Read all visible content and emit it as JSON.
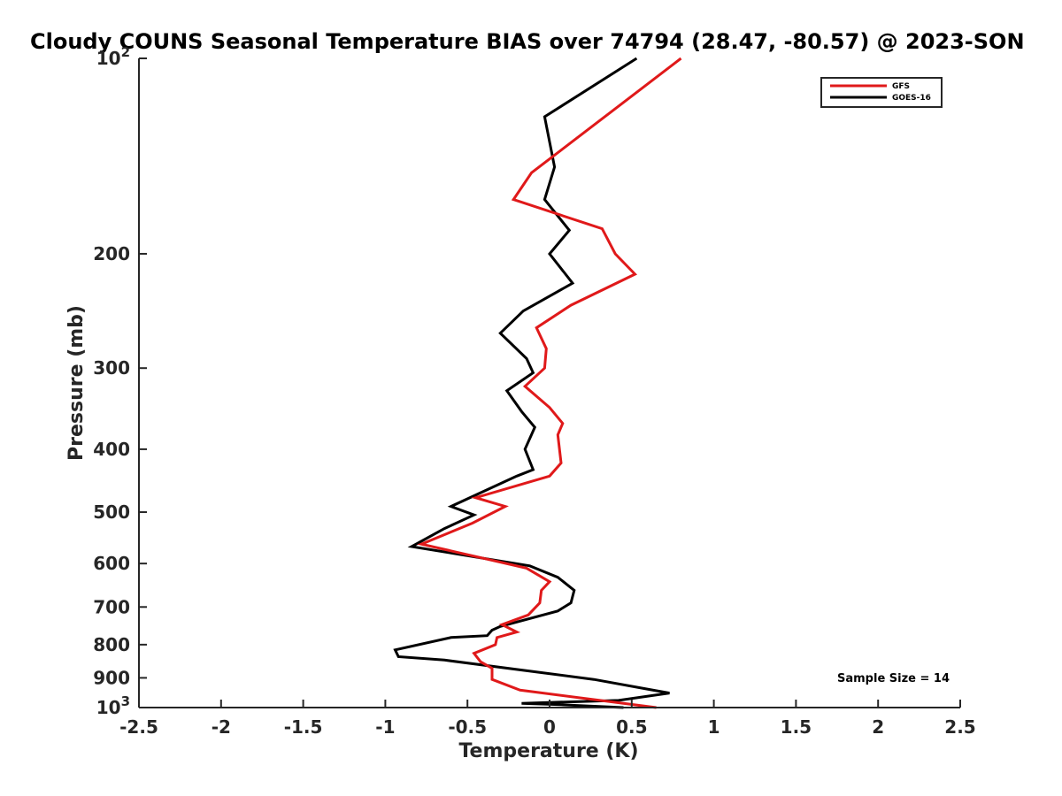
{
  "chart_data": {
    "type": "line",
    "title": "Cloudy COUNS Seasonal Temperature BIAS over 74794 (28.47, -80.57) @ 2023-SON",
    "xlabel": "Temperature (K)",
    "ylabel": "Pressure (mb)",
    "xlim": [
      -2.5,
      2.5
    ],
    "ylim": [
      100,
      1000
    ],
    "y_scale": "log",
    "y_reversed": true,
    "x_ticks": [
      -2.5,
      -2,
      -1.5,
      -1,
      -0.5,
      0,
      0.5,
      1,
      1.5,
      2,
      2.5
    ],
    "x_tick_labels": [
      "-2.5",
      "-2",
      "-1.5",
      "-1",
      "-0.5",
      "0",
      "0.5",
      "1",
      "1.5",
      "2",
      "2.5"
    ],
    "y_ticks": [
      100,
      200,
      300,
      400,
      500,
      600,
      700,
      800,
      900,
      1000
    ],
    "y_tick_labels": [
      {
        "base": "10",
        "exp": "2"
      },
      {
        "base": "200",
        "exp": ""
      },
      {
        "base": "300",
        "exp": ""
      },
      {
        "base": "400",
        "exp": ""
      },
      {
        "base": "500",
        "exp": ""
      },
      {
        "base": "600",
        "exp": ""
      },
      {
        "base": "700",
        "exp": ""
      },
      {
        "base": "800",
        "exp": ""
      },
      {
        "base": "900",
        "exp": ""
      },
      {
        "base": "10",
        "exp": "3"
      }
    ],
    "grid": false,
    "legend_position": "top-right",
    "annotation": "Sample Size = 14",
    "series": [
      {
        "name": "GFS",
        "color": "#e0191a",
        "points": [
          [
            0.8,
            100
          ],
          [
            0.3,
            125
          ],
          [
            -0.11,
            150
          ],
          [
            -0.22,
            165
          ],
          [
            0.32,
            183
          ],
          [
            0.4,
            200
          ],
          [
            0.52,
            215
          ],
          [
            0.13,
            240
          ],
          [
            -0.08,
            260
          ],
          [
            -0.02,
            280
          ],
          [
            -0.03,
            300
          ],
          [
            -0.15,
            320
          ],
          [
            0.0,
            345
          ],
          [
            0.08,
            365
          ],
          [
            0.05,
            380
          ],
          [
            0.07,
            420
          ],
          [
            0.0,
            440
          ],
          [
            -0.45,
            475
          ],
          [
            -0.27,
            490
          ],
          [
            -0.47,
            520
          ],
          [
            -0.78,
            560
          ],
          [
            -0.14,
            610
          ],
          [
            0.0,
            640
          ],
          [
            -0.05,
            660
          ],
          [
            -0.06,
            690
          ],
          [
            -0.13,
            720
          ],
          [
            -0.29,
            745
          ],
          [
            -0.2,
            765
          ],
          [
            -0.32,
            780
          ],
          [
            -0.33,
            800
          ],
          [
            -0.46,
            825
          ],
          [
            -0.42,
            850
          ],
          [
            -0.35,
            870
          ],
          [
            -0.35,
            905
          ],
          [
            -0.18,
            940
          ],
          [
            0.65,
            1000
          ]
        ]
      },
      {
        "name": "GOES-16",
        "color": "#000000",
        "points": [
          [
            0.53,
            100
          ],
          [
            -0.03,
            123
          ],
          [
            0.03,
            147
          ],
          [
            -0.03,
            165
          ],
          [
            0.12,
            184
          ],
          [
            0.0,
            200
          ],
          [
            0.14,
            222
          ],
          [
            -0.16,
            245
          ],
          [
            -0.3,
            265
          ],
          [
            -0.14,
            290
          ],
          [
            -0.1,
            305
          ],
          [
            -0.26,
            325
          ],
          [
            -0.17,
            350
          ],
          [
            -0.09,
            370
          ],
          [
            -0.15,
            400
          ],
          [
            -0.1,
            430
          ],
          [
            -0.2,
            440
          ],
          [
            -0.6,
            490
          ],
          [
            -0.46,
            505
          ],
          [
            -0.64,
            530
          ],
          [
            -0.84,
            565
          ],
          [
            -0.12,
            605
          ],
          [
            0.05,
            630
          ],
          [
            0.15,
            660
          ],
          [
            0.13,
            690
          ],
          [
            0.05,
            710
          ],
          [
            -0.3,
            750
          ],
          [
            -0.35,
            760
          ],
          [
            -0.38,
            775
          ],
          [
            -0.6,
            780
          ],
          [
            -0.94,
            815
          ],
          [
            -0.92,
            835
          ],
          [
            -0.64,
            845
          ],
          [
            0.27,
            905
          ],
          [
            0.58,
            935
          ],
          [
            0.73,
            950
          ],
          [
            0.42,
            975
          ],
          [
            -0.17,
            985
          ],
          [
            0.07,
            990
          ],
          [
            0.45,
            1000
          ]
        ]
      }
    ]
  }
}
